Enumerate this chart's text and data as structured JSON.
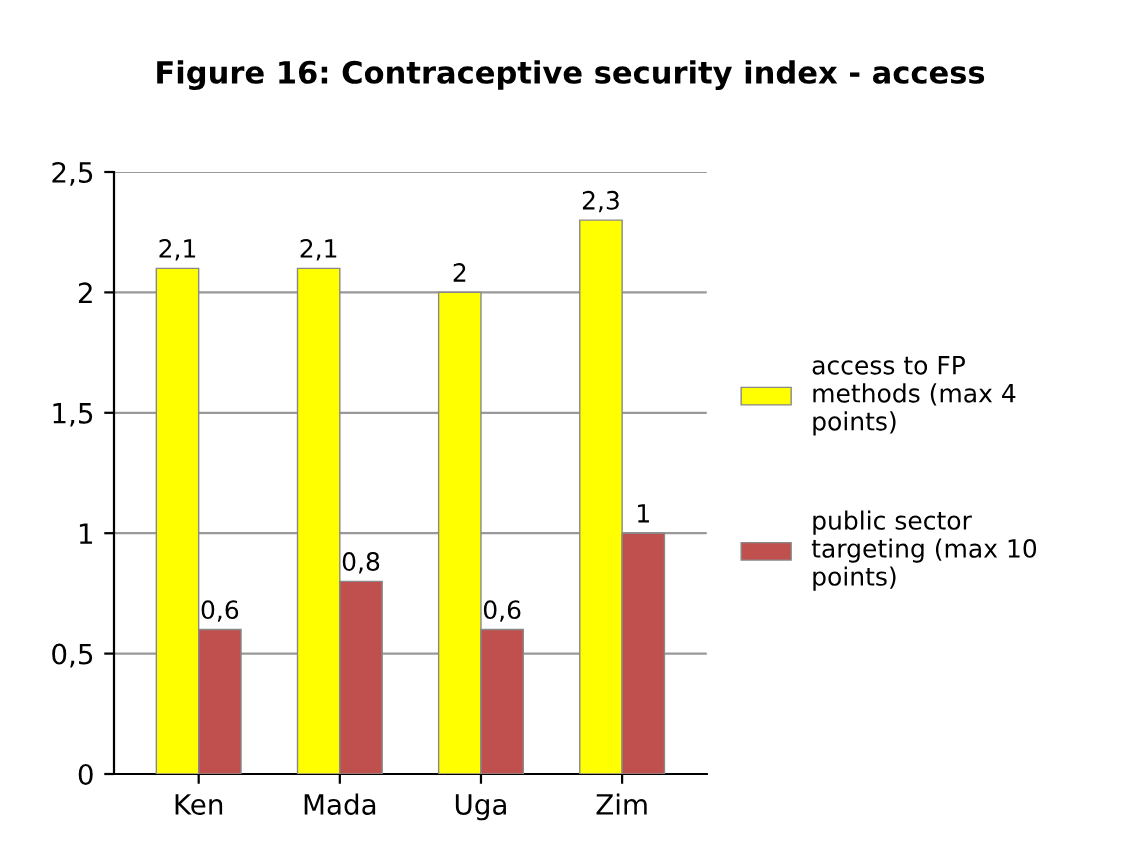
{
  "chart_data": {
    "type": "bar",
    "title": "Figure 16: Contraceptive security index - access",
    "categories": [
      "Ken",
      "Mada",
      "Uga",
      "Zim"
    ],
    "series": [
      {
        "name": "access to FP methods (max 4 points)",
        "color": "#ffff00",
        "values": [
          2.1,
          2.1,
          2,
          2.3
        ],
        "value_labels": [
          "2,1",
          "2,1",
          "2",
          "2,3"
        ]
      },
      {
        "name": "public sector targeting (max 10 points)",
        "color": "#c0504d",
        "values": [
          0.6,
          0.8,
          0.6,
          1
        ],
        "value_labels": [
          "0,6",
          "0,8",
          "0,6",
          "1"
        ]
      }
    ],
    "ylim": [
      0,
      2.5
    ],
    "yticks": [
      0,
      {
        "value": 0.5,
        "label": "0,5"
      },
      1,
      {
        "value": 1.5,
        "label": "1,5"
      },
      2,
      {
        "value": 2.5,
        "label": "2,5"
      }
    ],
    "grid": "y",
    "legend": "right"
  }
}
